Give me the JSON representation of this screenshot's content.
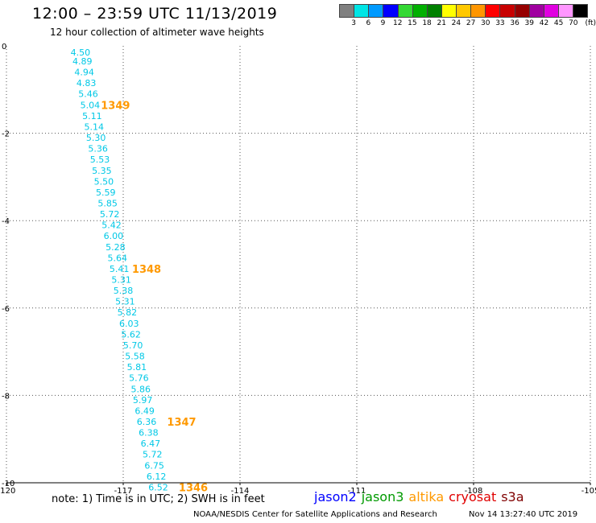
{
  "header": {
    "title": "12:00 – 23:59 UTC 11/13/2019",
    "subtitle": "12 hour collection of altimeter wave heights"
  },
  "legend": {
    "colors": [
      "#808080",
      "#00e5e5",
      "#009aff",
      "#0000ff",
      "#33d833",
      "#00b000",
      "#008000",
      "#ffff00",
      "#ffc800",
      "#ff9600",
      "#ff0000",
      "#c80000",
      "#960000",
      "#a000a0",
      "#e000e0",
      "#ff96ff",
      "#000000"
    ],
    "labels": [
      "3",
      "6",
      "9",
      "12",
      "15",
      "18",
      "21",
      "24",
      "27",
      "30",
      "33",
      "36",
      "39",
      "42",
      "45",
      "70"
    ],
    "unit": "(ft)"
  },
  "chart_data": {
    "type": "scatter",
    "xlim": [
      -120,
      -105
    ],
    "ylim": [
      -10,
      0
    ],
    "x_ticks": [
      "-120",
      "-117",
      "-114",
      "-111",
      "-108",
      "-105"
    ],
    "y_ticks": [
      "0",
      "-2",
      "-4",
      "-6",
      "-8",
      "-10"
    ],
    "grid": true,
    "swh_color": "#00c8e6",
    "time_color": "#ff9900",
    "points": [
      {
        "x": -118.1,
        "y": -0.15,
        "v": "4.50"
      },
      {
        "x": -118.05,
        "y": -0.35,
        "v": "4.89"
      },
      {
        "x": -118.0,
        "y": -0.6,
        "v": "4.94"
      },
      {
        "x": -117.95,
        "y": -0.85,
        "v": "4.83"
      },
      {
        "x": -117.9,
        "y": -1.1,
        "v": "5.46"
      },
      {
        "x": -117.85,
        "y": -1.35,
        "v": "5.04"
      },
      {
        "x": -117.8,
        "y": -1.6,
        "v": "5.11"
      },
      {
        "x": -117.75,
        "y": -1.85,
        "v": "5.14"
      },
      {
        "x": -117.7,
        "y": -2.1,
        "v": "5.30"
      },
      {
        "x": -117.65,
        "y": -2.35,
        "v": "5.36"
      },
      {
        "x": -117.6,
        "y": -2.6,
        "v": "5.53"
      },
      {
        "x": -117.55,
        "y": -2.85,
        "v": "5.35"
      },
      {
        "x": -117.5,
        "y": -3.1,
        "v": "5.50"
      },
      {
        "x": -117.45,
        "y": -3.35,
        "v": "5.59"
      },
      {
        "x": -117.4,
        "y": -3.6,
        "v": "5.85"
      },
      {
        "x": -117.35,
        "y": -3.85,
        "v": "5.72"
      },
      {
        "x": -117.3,
        "y": -4.1,
        "v": "5.42"
      },
      {
        "x": -117.25,
        "y": -4.35,
        "v": "6.00"
      },
      {
        "x": -117.2,
        "y": -4.6,
        "v": "5.28"
      },
      {
        "x": -117.15,
        "y": -4.85,
        "v": "5.64"
      },
      {
        "x": -117.1,
        "y": -5.1,
        "v": "5.41"
      },
      {
        "x": -117.05,
        "y": -5.35,
        "v": "5.31"
      },
      {
        "x": -117.0,
        "y": -5.6,
        "v": "5.38"
      },
      {
        "x": -116.95,
        "y": -5.85,
        "v": "5.31"
      },
      {
        "x": -116.9,
        "y": -6.1,
        "v": "5.82"
      },
      {
        "x": -116.85,
        "y": -6.35,
        "v": "6.03"
      },
      {
        "x": -116.8,
        "y": -6.6,
        "v": "5.62"
      },
      {
        "x": -116.75,
        "y": -6.85,
        "v": "5.70"
      },
      {
        "x": -116.7,
        "y": -7.1,
        "v": "5.58"
      },
      {
        "x": -116.65,
        "y": -7.35,
        "v": "5.81"
      },
      {
        "x": -116.6,
        "y": -7.6,
        "v": "5.76"
      },
      {
        "x": -116.55,
        "y": -7.85,
        "v": "5.86"
      },
      {
        "x": -116.5,
        "y": -8.1,
        "v": "5.97"
      },
      {
        "x": -116.45,
        "y": -8.35,
        "v": "6.49"
      },
      {
        "x": -116.4,
        "y": -8.6,
        "v": "6.36"
      },
      {
        "x": -116.35,
        "y": -8.85,
        "v": "6.38"
      },
      {
        "x": -116.3,
        "y": -9.1,
        "v": "6.47"
      },
      {
        "x": -116.25,
        "y": -9.35,
        "v": "5.72"
      },
      {
        "x": -116.2,
        "y": -9.6,
        "v": "6.75"
      },
      {
        "x": -116.15,
        "y": -9.85,
        "v": "6.12"
      },
      {
        "x": -116.1,
        "y": -10.1,
        "v": "6.52"
      }
    ],
    "times": [
      {
        "x": -117.2,
        "y": -1.35,
        "t": "1349"
      },
      {
        "x": -116.4,
        "y": -5.1,
        "t": "1348"
      },
      {
        "x": -115.5,
        "y": -8.6,
        "t": "1347"
      },
      {
        "x": -115.2,
        "y": -10.1,
        "t": "1346"
      }
    ]
  },
  "footer": {
    "note": "note: 1) Time is in UTC; 2) SWH is in feet",
    "satellites": [
      {
        "name": "jason2",
        "color": "#0000ff"
      },
      {
        "name": "jason3",
        "color": "#009a00"
      },
      {
        "name": "altika",
        "color": "#ff9900"
      },
      {
        "name": "cryosat",
        "color": "#e00000"
      },
      {
        "name": "s3a",
        "color": "#800000"
      }
    ],
    "credit": "NOAA/NESDIS Center for Satellite Applications and Research",
    "timestamp": "Nov 14 13:27:40 UTC 2019"
  }
}
